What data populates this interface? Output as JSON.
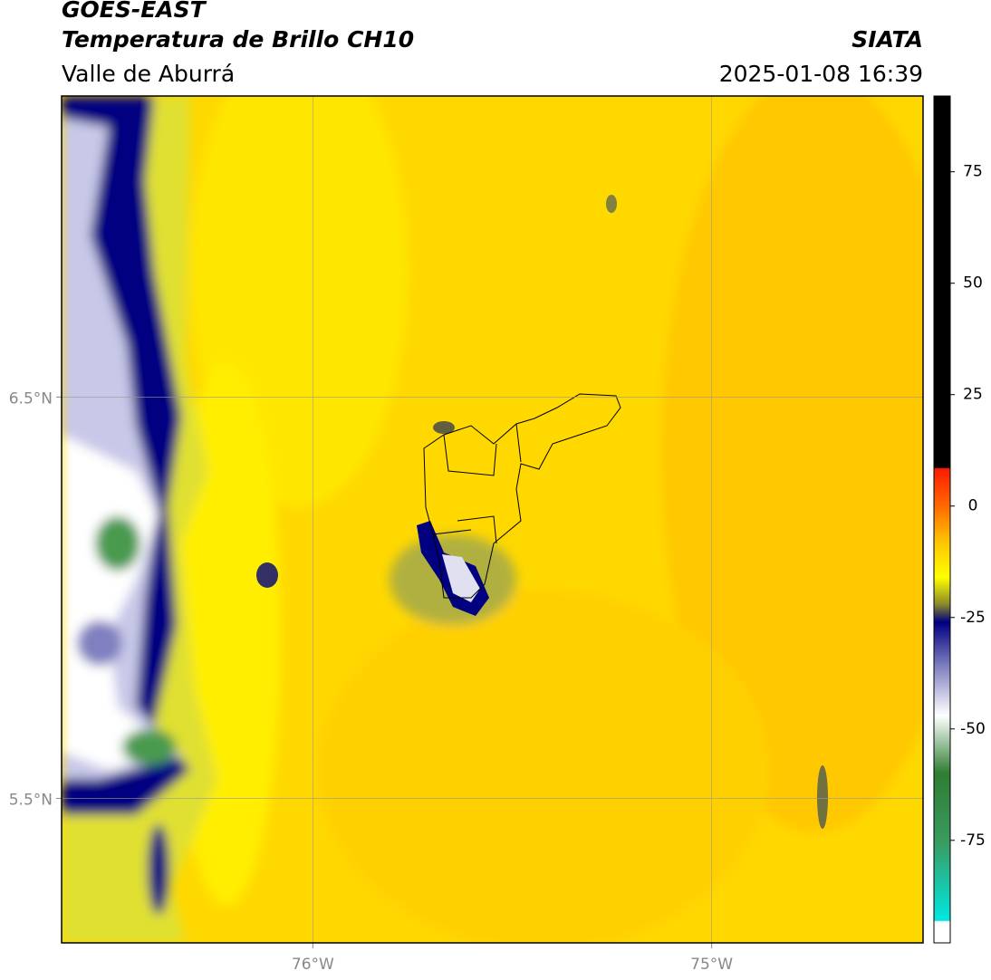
{
  "header": {
    "title": "GOES-EAST",
    "subtitle": "Temperatura de Brillo CH10",
    "region": "Valle de Aburrá",
    "source": "SIATA",
    "datetime": "2025-01-08 16:39"
  },
  "map": {
    "lonlim": [
      -76.63,
      -74.47
    ],
    "latlim": [
      5.14,
      7.25
    ],
    "lat_lines": [
      {
        "value": 6.5,
        "label": "6.5°N"
      },
      {
        "value": 5.5,
        "label": "5.5°N"
      }
    ],
    "lon_lines": [
      {
        "value": -76,
        "label": "76°W"
      },
      {
        "value": -75,
        "label": "75°W"
      }
    ]
  },
  "colorbar": {
    "lim": [
      -98,
      92
    ],
    "ticks": [
      75,
      50,
      25,
      0,
      -25,
      -50,
      -75
    ],
    "stops": [
      {
        "value": 92,
        "color": "#000000"
      },
      {
        "value": 8.6,
        "color": "#000000"
      },
      {
        "value": 8.4,
        "color": "#ff1a00"
      },
      {
        "value": 0,
        "color": "#ff6a00"
      },
      {
        "value": -8,
        "color": "#ffc400"
      },
      {
        "value": -16,
        "color": "#ffff00"
      },
      {
        "value": -22,
        "color": "#8a8a2a"
      },
      {
        "value": -26,
        "color": "#000080"
      },
      {
        "value": -36,
        "color": "#8080c0"
      },
      {
        "value": -47,
        "color": "#ffffff"
      },
      {
        "value": -60,
        "color": "#2e7d32"
      },
      {
        "value": -75,
        "color": "#3a9a60"
      },
      {
        "value": -93,
        "color": "#00e8e0"
      },
      {
        "value": -93.2,
        "color": "#ffffff"
      },
      {
        "value": -98,
        "color": "#ffffff"
      }
    ]
  }
}
